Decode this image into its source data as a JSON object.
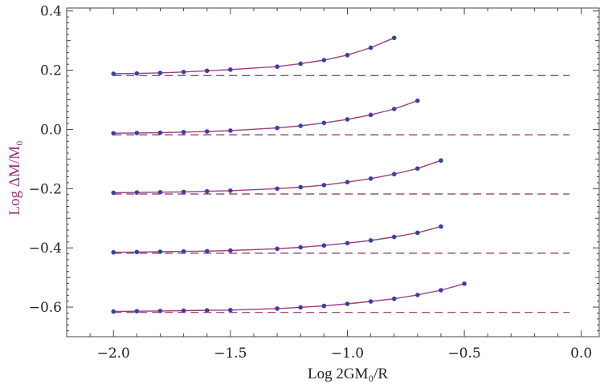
{
  "chart_data": {
    "type": "line",
    "xlabel": "Log 2GM₀/R",
    "ylabel": "Log ΔM/M₀",
    "xlim": [
      -2.2,
      0.08
    ],
    "ylim": [
      -0.7,
      0.41
    ],
    "x_ticks": [
      -2.0,
      -1.5,
      -1.0,
      -0.5,
      0.0
    ],
    "x_tick_labels": [
      "−2.0",
      "−1.5",
      "−1.0",
      "−0.5",
      "0.0"
    ],
    "y_ticks": [
      -0.6,
      -0.4,
      -0.2,
      0.0,
      0.2,
      0.4
    ],
    "y_tick_labels": [
      "−0.6",
      "−0.4",
      "−0.2",
      "0.0",
      "0.2",
      "0.4"
    ],
    "grid": false,
    "colors": {
      "line": "#9a3f7e",
      "marker": "#3b3fa8",
      "dashed": "#8b2e5c",
      "ylabel": "#9b2b7f"
    },
    "series": [
      {
        "asymptote": 0.182,
        "x": [
          -2.0,
          -1.9,
          -1.8,
          -1.7,
          -1.6,
          -1.5,
          -1.3,
          -1.2,
          -1.1,
          -1.0,
          -0.9,
          -0.8
        ],
        "y": [
          0.188,
          0.189,
          0.191,
          0.194,
          0.198,
          0.202,
          0.212,
          0.222,
          0.234,
          0.251,
          0.276,
          0.309
        ]
      },
      {
        "asymptote": -0.018,
        "x": [
          -2.0,
          -1.9,
          -1.8,
          -1.7,
          -1.6,
          -1.5,
          -1.3,
          -1.2,
          -1.1,
          -1.0,
          -0.9,
          -0.8,
          -0.7
        ],
        "y": [
          -0.013,
          -0.012,
          -0.011,
          -0.009,
          -0.007,
          -0.004,
          0.005,
          0.012,
          0.022,
          0.034,
          0.049,
          0.069,
          0.097
        ]
      },
      {
        "asymptote": -0.218,
        "x": [
          -2.0,
          -1.9,
          -1.8,
          -1.7,
          -1.6,
          -1.5,
          -1.3,
          -1.2,
          -1.1,
          -1.0,
          -0.9,
          -0.8,
          -0.7,
          -0.6
        ],
        "y": [
          -0.214,
          -0.213,
          -0.212,
          -0.211,
          -0.209,
          -0.207,
          -0.2,
          -0.195,
          -0.188,
          -0.178,
          -0.166,
          -0.151,
          -0.132,
          -0.105
        ]
      },
      {
        "asymptote": -0.418,
        "x": [
          -2.0,
          -1.9,
          -1.8,
          -1.7,
          -1.6,
          -1.5,
          -1.3,
          -1.2,
          -1.1,
          -1.0,
          -0.9,
          -0.8,
          -0.7,
          -0.6
        ],
        "y": [
          -0.415,
          -0.414,
          -0.413,
          -0.412,
          -0.411,
          -0.409,
          -0.403,
          -0.398,
          -0.392,
          -0.384,
          -0.375,
          -0.363,
          -0.349,
          -0.328
        ]
      },
      {
        "asymptote": -0.618,
        "x": [
          -2.0,
          -1.9,
          -1.8,
          -1.7,
          -1.6,
          -1.5,
          -1.3,
          -1.2,
          -1.1,
          -1.0,
          -0.9,
          -0.8,
          -0.7,
          -0.6,
          -0.5
        ],
        "y": [
          -0.615,
          -0.614,
          -0.613,
          -0.612,
          -0.611,
          -0.61,
          -0.605,
          -0.601,
          -0.596,
          -0.589,
          -0.581,
          -0.572,
          -0.559,
          -0.543,
          -0.521
        ]
      }
    ]
  }
}
